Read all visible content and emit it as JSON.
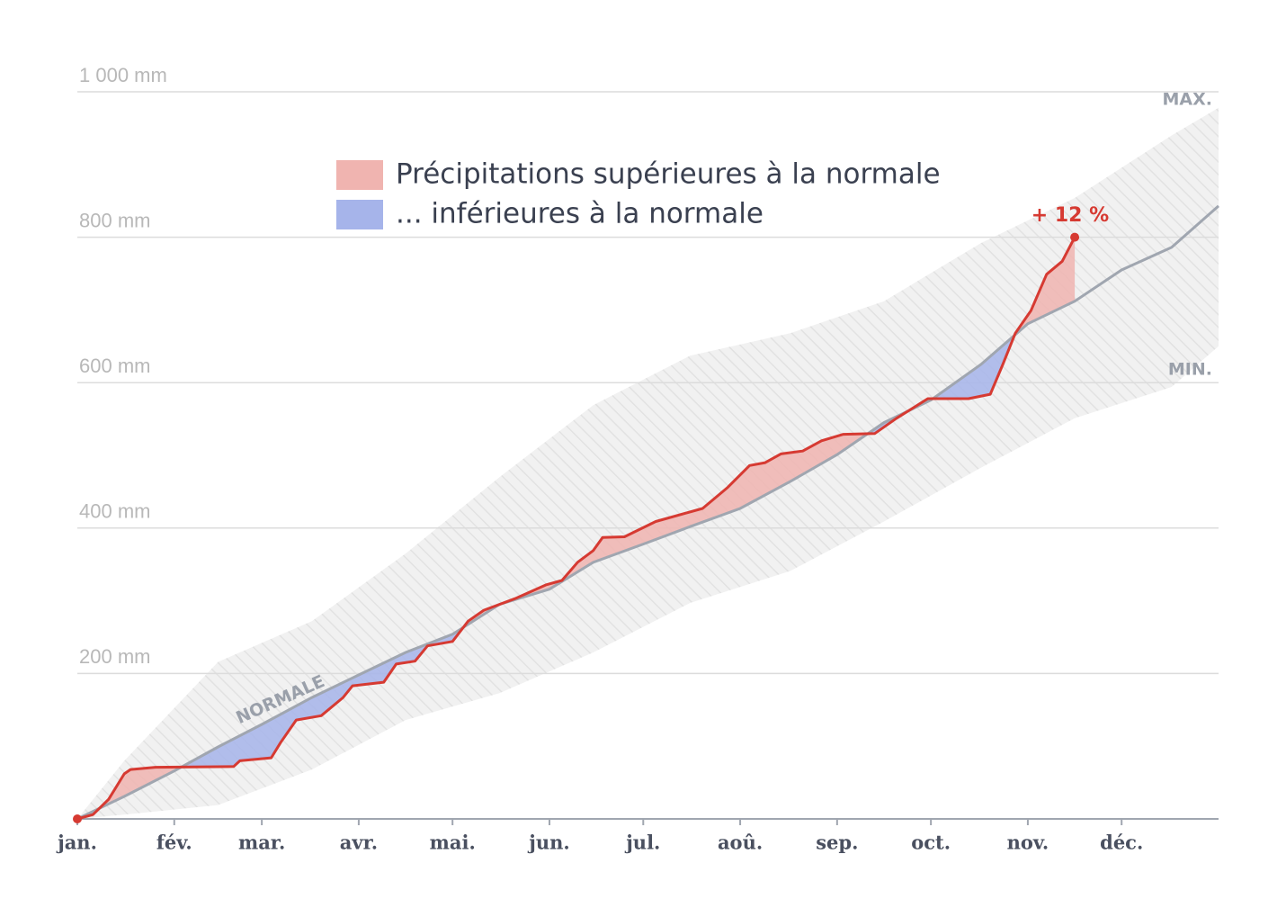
{
  "chart_data": {
    "type": "line",
    "xlim": [
      0,
      365
    ],
    "xticks": [
      {
        "value": 0,
        "label": "jan."
      },
      {
        "value": 31,
        "label": "fév."
      },
      {
        "value": 59,
        "label": "mar."
      },
      {
        "value": 90,
        "label": "avr."
      },
      {
        "value": 120,
        "label": "mai."
      },
      {
        "value": 151,
        "label": "jun."
      },
      {
        "value": 181,
        "label": "jul."
      },
      {
        "value": 212,
        "label": "aoû."
      },
      {
        "value": 243,
        "label": "sep."
      },
      {
        "value": 273,
        "label": "oct."
      },
      {
        "value": 304,
        "label": "nov."
      },
      {
        "value": 334,
        "label": "déc."
      }
    ],
    "ylim": [
      0,
      1000
    ],
    "yticks": [
      {
        "value": 200,
        "label": "200 mm"
      },
      {
        "value": 400,
        "label": "400 mm"
      },
      {
        "value": 600,
        "label": "600 mm"
      },
      {
        "value": 800,
        "label": "800 mm"
      },
      {
        "value": 1000,
        "label": "1 000 mm"
      }
    ],
    "grid": true,
    "legend": [
      {
        "label": "Précipitations supérieures à la normale",
        "color": "#f0b4b0"
      },
      {
        "label": "... inférieures à la normale",
        "color": "#a6b4ea"
      }
    ],
    "annotation": "+ 12 %",
    "series": [
      {
        "name": "NORMALE",
        "color": "#a0a6b0",
        "x": [
          0,
          15,
          31,
          45,
          59,
          75,
          90,
          105,
          120,
          135,
          151,
          165,
          181,
          196,
          212,
          228,
          243,
          258,
          273,
          289,
          304,
          319,
          334,
          350,
          365
        ],
        "values": [
          0,
          31,
          66,
          99,
          130,
          167,
          198,
          229,
          254,
          295,
          316,
          353,
          378,
          402,
          427,
          464,
          501,
          545,
          576,
          625,
          681,
          712,
          755,
          786,
          843
        ]
      },
      {
        "color": "#d63a32",
        "x": [
          0,
          5,
          10,
          15,
          17,
          25,
          50,
          52,
          62,
          65,
          70,
          78,
          85,
          88,
          98,
          102,
          108,
          112,
          120,
          125,
          130,
          140,
          150,
          155,
          160,
          165,
          168,
          175,
          185,
          195,
          200,
          208,
          215,
          220,
          225,
          232,
          238,
          245,
          255,
          262,
          272,
          285,
          292,
          296,
          300,
          305,
          310,
          315,
          319
        ],
        "values": [
          0,
          6,
          27,
          62,
          68,
          71,
          72,
          80,
          84,
          105,
          136,
          142,
          167,
          183,
          188,
          213,
          217,
          238,
          244,
          272,
          287,
          303,
          322,
          328,
          353,
          369,
          387,
          388,
          409,
          421,
          427,
          456,
          486,
          490,
          502,
          506,
          520,
          529,
          530,
          551,
          578,
          578,
          584,
          625,
          668,
          699,
          749,
          767,
          800
        ]
      },
      {
        "name": "MAX.",
        "color": "#bbbbbb",
        "x": [
          0,
          15,
          45,
          75,
          105,
          135,
          165,
          196,
          228,
          258,
          289,
          319,
          350,
          365
        ],
        "values": [
          0,
          80,
          216,
          272,
          365,
          470,
          569,
          637,
          668,
          712,
          792,
          854,
          940,
          978
        ]
      },
      {
        "name": "MIN.",
        "color": "#bbbbbb",
        "x": [
          0,
          15,
          45,
          75,
          105,
          135,
          165,
          196,
          228,
          258,
          289,
          319,
          350,
          365
        ],
        "values": [
          0,
          6,
          19,
          68,
          136,
          173,
          229,
          297,
          341,
          409,
          483,
          551,
          594,
          650
        ]
      }
    ]
  }
}
